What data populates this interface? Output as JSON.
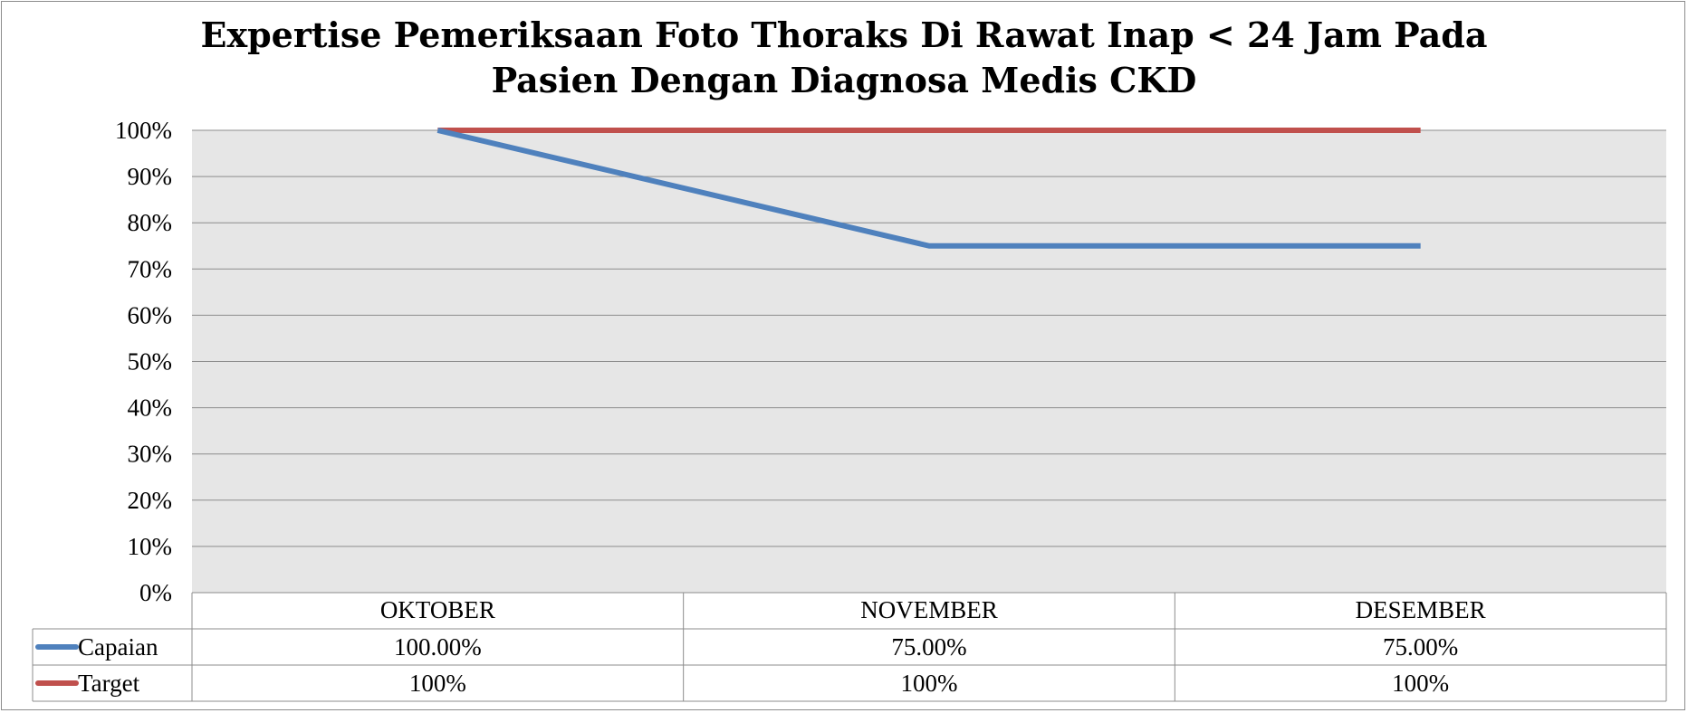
{
  "chart_data": {
    "type": "line",
    "title_lines": [
      "Expertise Pemeriksaan Foto Thoraks Di Rawat Inap < 24 Jam Pada",
      "Pasien Dengan Diagnosa Medis CKD"
    ],
    "categories": [
      "OKTOBER",
      "NOVEMBER",
      "DESEMBER"
    ],
    "y_ticks": [
      "0%",
      "10%",
      "20%",
      "30%",
      "40%",
      "50%",
      "60%",
      "70%",
      "80%",
      "90%",
      "100%"
    ],
    "ylim": [
      0,
      1
    ],
    "grid": true,
    "legend": "data-table-left",
    "series": [
      {
        "name": "Capaian",
        "values": [
          1.0,
          0.75,
          0.75
        ],
        "labels": [
          "100.00%",
          "75.00%",
          "75.00%"
        ],
        "color": "#4f81bd"
      },
      {
        "name": "Target",
        "values": [
          1.0,
          1.0,
          1.0
        ],
        "labels": [
          "100%",
          "100%",
          "100%"
        ],
        "color": "#c0504d"
      }
    ],
    "plot_background": "#e6e6e6",
    "gridline_color": "#8c8c8c"
  }
}
